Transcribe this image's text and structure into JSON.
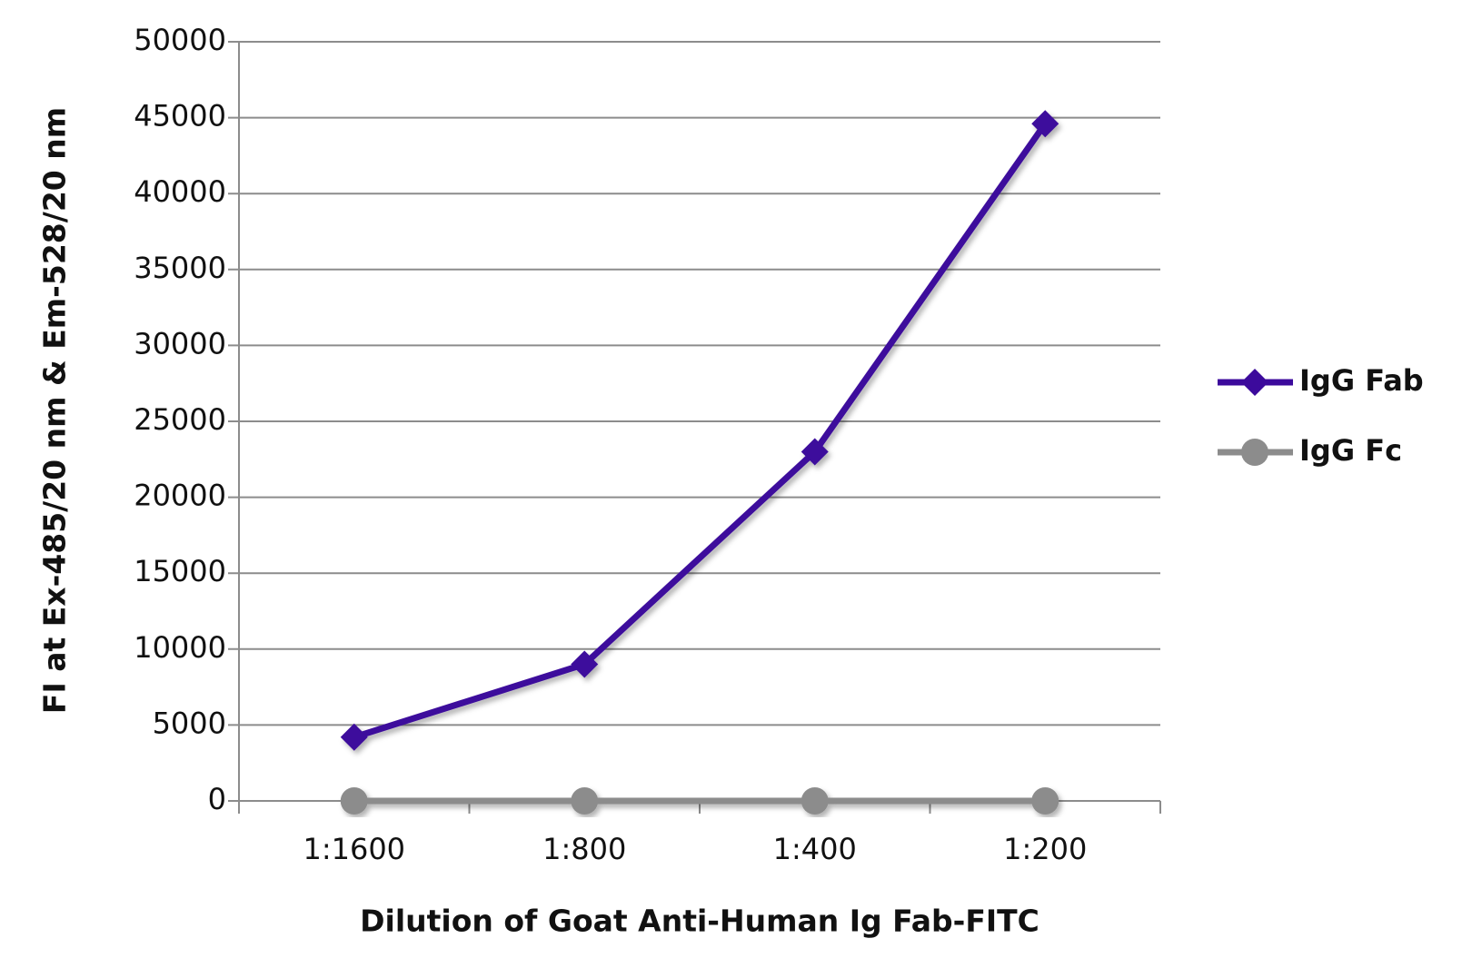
{
  "chart_data": {
    "type": "line",
    "x_label": "Dilution of Goat Anti-Human Ig Fab-FITC",
    "y_label": "FI at Ex-485/20 nm & Em-528/20 nm",
    "categories": [
      "1:1600",
      "1:800",
      "1:400",
      "1:200"
    ],
    "series": [
      {
        "name": "IgG Fab",
        "color": "#3c0a9c",
        "marker": "diamond",
        "values": [
          4200,
          9000,
          23000,
          44600
        ]
      },
      {
        "name": "IgG Fc",
        "color": "#8c8c8c",
        "marker": "circle",
        "values": [
          0,
          0,
          0,
          0
        ]
      }
    ],
    "ylim": [
      0,
      50000
    ],
    "yticks": [
      0,
      5000,
      10000,
      15000,
      20000,
      25000,
      30000,
      35000,
      40000,
      45000,
      50000
    ],
    "grid": true
  }
}
